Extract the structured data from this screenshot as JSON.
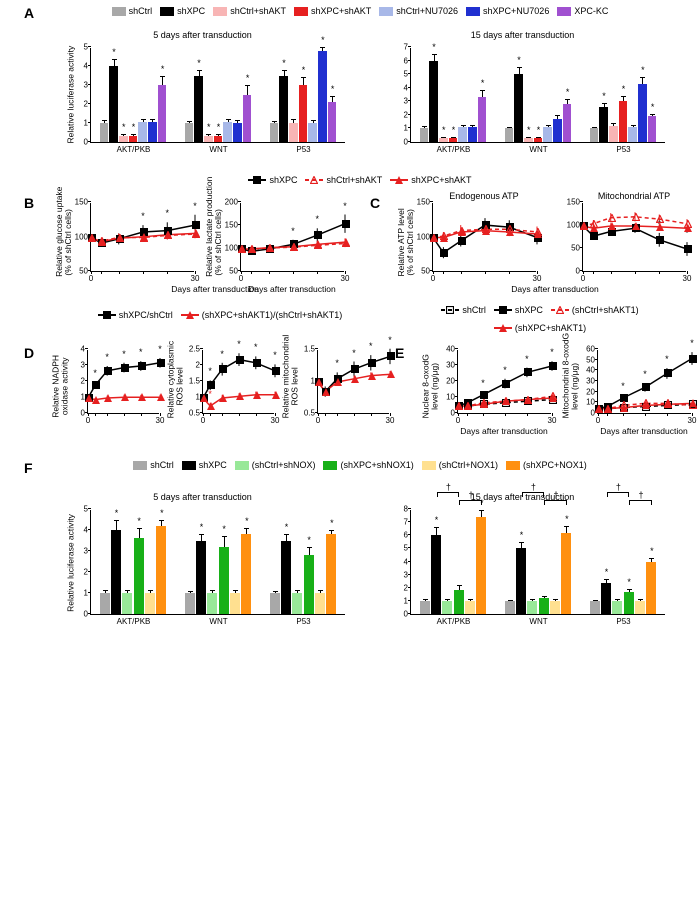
{
  "panelA": {
    "label": "A",
    "legend": [
      {
        "label": "shCtrl",
        "color": "#a8a8a8"
      },
      {
        "label": "shXPC",
        "color": "#000000"
      },
      {
        "label": "shCtrl+shAKT",
        "color": "#f8b5b5"
      },
      {
        "label": "shXPC+shAKT",
        "color": "#e62020"
      },
      {
        "label": "shCtrl+NU7026",
        "color": "#a8b8e8"
      },
      {
        "label": "shXPC+NU7026",
        "color": "#2030d0"
      },
      {
        "label": "XPC-KC",
        "color": "#a050d0"
      }
    ],
    "ylabel": "Relative luciferase activity",
    "ylim": [
      0,
      5
    ],
    "charts": [
      {
        "title": "5 days after transduction",
        "groups": [
          "AKT/PKB",
          "WNT",
          "P53"
        ],
        "data": [
          [
            1.0,
            4.0,
            0.3,
            0.3,
            1.05,
            1.05,
            3.0
          ],
          [
            1.0,
            3.5,
            0.3,
            0.3,
            1.05,
            1.0,
            2.5
          ],
          [
            1.0,
            3.5,
            1.0,
            3.0,
            1.0,
            4.8,
            2.1
          ]
        ],
        "err": [
          [
            0.15,
            0.35,
            0.1,
            0.1,
            0.15,
            0.15,
            0.5
          ],
          [
            0.1,
            0.3,
            0.1,
            0.1,
            0.15,
            0.15,
            0.5
          ],
          [
            0.1,
            0.3,
            0.2,
            0.4,
            0.15,
            0.2,
            0.3
          ]
        ],
        "stars": [
          [
            1,
            2,
            3,
            6
          ],
          [
            1,
            2,
            3,
            6
          ],
          [
            1,
            3,
            5,
            6
          ]
        ]
      },
      {
        "title": "15 days after transduction",
        "groups": [
          "AKT/PKB",
          "WNT",
          "P53"
        ],
        "ylim": [
          0,
          7
        ],
        "data": [
          [
            1.0,
            6.0,
            0.3,
            0.3,
            1.1,
            1.1,
            3.3
          ],
          [
            1.0,
            5.0,
            0.3,
            0.3,
            1.1,
            1.7,
            2.8
          ],
          [
            1.0,
            2.6,
            1.2,
            3.0,
            1.1,
            4.3,
            1.9
          ]
        ],
        "err": [
          [
            0.15,
            0.5,
            0.1,
            0.1,
            0.15,
            0.15,
            0.5
          ],
          [
            0.1,
            0.5,
            0.1,
            0.1,
            0.15,
            0.3,
            0.4
          ],
          [
            0.1,
            0.3,
            0.2,
            0.4,
            0.15,
            0.5,
            0.2
          ]
        ],
        "stars": [
          [
            1,
            2,
            3,
            6
          ],
          [
            1,
            2,
            3,
            6
          ],
          [
            1,
            3,
            5,
            6
          ]
        ]
      }
    ]
  },
  "legendBCDE": [
    {
      "label": "shXPC",
      "color": "#000000",
      "marker": "square-filled"
    },
    {
      "label": "shCtrl+shAKT",
      "color": "#e62020",
      "marker": "triangle-open",
      "dash": true
    },
    {
      "label": "shXPC+shAKT",
      "color": "#e62020",
      "marker": "triangle-filled"
    }
  ],
  "panelB": {
    "label": "B",
    "xlabel": "Days after transduction",
    "xvals": [
      0,
      3,
      8,
      15,
      22,
      30
    ],
    "charts": [
      {
        "ylabel": "Relative glucose uptake\n(% of shCtrl cells)",
        "ylim": [
          50,
          150
        ],
        "ystep": 50,
        "series": [
          {
            "y": [
              100,
              92,
              98,
              108,
              110,
              118
            ],
            "err": [
              5,
              5,
              8,
              10,
              12,
              15
            ],
            "stars": [
              3,
              4,
              5
            ]
          },
          {
            "y": [
              100,
              95,
              100,
              100,
              103,
              105
            ],
            "err": [
              5,
              5,
              6,
              6,
              6,
              6
            ]
          },
          {
            "y": [
              100,
              94,
              99,
              101,
              104,
              106
            ],
            "err": [
              5,
              5,
              6,
              6,
              6,
              6
            ]
          }
        ]
      },
      {
        "ylabel": "Relative lactate production\n(% of shCtrl cells)",
        "ylim": [
          50,
          200
        ],
        "ystep": 50,
        "series": [
          {
            "y": [
              100,
              95,
              100,
              110,
              130,
              155
            ],
            "err": [
              5,
              5,
              8,
              10,
              15,
              20
            ],
            "stars": [
              3,
              4,
              5
            ]
          },
          {
            "y": [
              100,
              100,
              102,
              104,
              108,
              112
            ],
            "err": [
              5,
              5,
              6,
              6,
              8,
              8
            ]
          },
          {
            "y": [
              100,
              100,
              103,
              105,
              110,
              115
            ],
            "err": [
              5,
              5,
              6,
              6,
              8,
              8
            ]
          }
        ]
      }
    ]
  },
  "panelC": {
    "label": "C",
    "xlabel": "Days after transduction",
    "xvals": [
      0,
      3,
      8,
      15,
      22,
      30
    ],
    "charts": [
      {
        "title": "Endogenous ATP",
        "ylabel": "Relative ATP level\n(% of shCtrl cells)",
        "ylim": [
          50,
          150
        ],
        "ystep": 50,
        "series": [
          {
            "y": [
              100,
              78,
              95,
              118,
              115,
              100
            ],
            "err": [
              5,
              8,
              8,
              10,
              10,
              10
            ]
          },
          {
            "y": [
              100,
              102,
              110,
              112,
              112,
              108
            ],
            "err": [
              5,
              6,
              8,
              8,
              8,
              8
            ]
          },
          {
            "y": [
              100,
              100,
              108,
              110,
              108,
              105
            ],
            "err": [
              5,
              6,
              6,
              6,
              6,
              6
            ]
          }
        ]
      },
      {
        "title": "Mitochondrial ATP",
        "ylim": [
          0,
          150
        ],
        "ystep": 50,
        "series": [
          {
            "y": [
              100,
              78,
              88,
              95,
              70,
              50
            ],
            "err": [
              5,
              8,
              8,
              10,
              15,
              15
            ],
            "stars": [
              4,
              5
            ]
          },
          {
            "y": [
              100,
              105,
              118,
              120,
              115,
              105
            ],
            "err": [
              5,
              8,
              10,
              10,
              10,
              10
            ]
          },
          {
            "y": [
              100,
              95,
              100,
              100,
              98,
              95
            ],
            "err": [
              5,
              6,
              6,
              6,
              6,
              6
            ]
          }
        ]
      }
    ]
  },
  "legendD": [
    {
      "label": "shXPC/shCtrl",
      "color": "#000000",
      "marker": "square-filled"
    },
    {
      "label": "(shXPC+shAKT1)/(shCtrl+shAKT1)",
      "color": "#e62020",
      "marker": "triangle-filled"
    }
  ],
  "panelD": {
    "label": "D",
    "xvals": [
      0,
      3,
      8,
      15,
      22,
      30
    ],
    "charts": [
      {
        "ylabel": "Relative NADPH\noxidase activity",
        "ylim": [
          0,
          4
        ],
        "ystep": 1,
        "series": [
          {
            "y": [
              1.0,
              1.8,
              2.7,
              2.9,
              3.0,
              3.2
            ],
            "err": [
              0.1,
              0.2,
              0.3,
              0.3,
              0.3,
              0.3
            ],
            "stars": [
              1,
              2,
              3,
              4,
              5
            ]
          },
          {
            "y": [
              1.0,
              0.9,
              1.0,
              1.05,
              1.05,
              1.05
            ],
            "err": [
              0.1,
              0.1,
              0.15,
              0.15,
              0.15,
              0.15
            ]
          }
        ]
      },
      {
        "ylabel": "Relative cytoplasmic\nROS level",
        "ylim": [
          0.5,
          2.5
        ],
        "ystep": 0.5,
        "series": [
          {
            "y": [
              1.0,
              1.4,
              1.9,
              2.2,
              2.1,
              1.85
            ],
            "err": [
              0.1,
              0.15,
              0.2,
              0.2,
              0.2,
              0.2
            ],
            "stars": [
              1,
              2,
              3,
              4,
              5
            ]
          },
          {
            "y": [
              1.0,
              0.75,
              1.0,
              1.05,
              1.1,
              1.1
            ],
            "err": [
              0.1,
              0.1,
              0.1,
              0.1,
              0.1,
              0.1
            ],
            "stars": [
              1
            ],
            "starcolor": "#e62020"
          }
        ]
      },
      {
        "ylabel": "Relative mitochondrial\nROS level",
        "ylim": [
          0.5,
          1.5
        ],
        "ystep": 0.5,
        "series": [
          {
            "y": [
              1.0,
              0.85,
              1.05,
              1.2,
              1.3,
              1.4
            ],
            "err": [
              0.05,
              0.08,
              0.1,
              0.12,
              0.12,
              0.12
            ],
            "stars": [
              2,
              3,
              4,
              5
            ]
          },
          {
            "y": [
              1.0,
              0.85,
              1.0,
              1.05,
              1.1,
              1.12
            ],
            "err": [
              0.05,
              0.05,
              0.05,
              0.05,
              0.05,
              0.05
            ]
          }
        ]
      }
    ]
  },
  "legendE": [
    {
      "label": "shCtrl",
      "color": "#000000",
      "marker": "square-open",
      "dash": true
    },
    {
      "label": "shXPC",
      "color": "#000000",
      "marker": "square-filled"
    },
    {
      "label": "(shCtrl+shAKT1)",
      "color": "#e62020",
      "marker": "triangle-open",
      "dash": true
    },
    {
      "label": "(shXPC+shAKT1)",
      "color": "#e62020",
      "marker": "triangle-filled"
    }
  ],
  "panelE": {
    "label": "E",
    "xlabel": "Days after transduction",
    "xvals": [
      0,
      3,
      8,
      15,
      22,
      30
    ],
    "charts": [
      {
        "ylabel": "Nuclear 8-oxodG\nlevel (ng/μg)",
        "ylim": [
          0,
          40
        ],
        "ystep": 10,
        "series": [
          {
            "y": [
              5,
              5,
              6,
              7,
              8,
              9
            ],
            "err": [
              1,
              1,
              1,
              1,
              1,
              1
            ]
          },
          {
            "y": [
              5,
              7,
              12,
              19,
              26,
              30
            ],
            "err": [
              1,
              2,
              2,
              3,
              3,
              3
            ],
            "stars": [
              2,
              3,
              4,
              5
            ]
          },
          {
            "y": [
              5,
              5,
              7,
              8,
              9,
              11
            ],
            "err": [
              1,
              1,
              1,
              1,
              1,
              1
            ]
          },
          {
            "y": [
              5,
              5,
              6,
              8,
              9,
              10
            ],
            "err": [
              1,
              1,
              1,
              1,
              1,
              1
            ]
          }
        ]
      },
      {
        "ylabel": "Mitochondrial 8-oxodG\nlevel (ng/μg)",
        "ylim": [
          0,
          60
        ],
        "ystep": 10,
        "series": [
          {
            "y": [
              5,
              5,
              6,
              7,
              8,
              9
            ],
            "err": [
              1,
              1,
              1,
              1,
              1,
              1
            ]
          },
          {
            "y": [
              5,
              7,
              15,
              25,
              38,
              52
            ],
            "err": [
              1,
              2,
              3,
              4,
              5,
              6
            ],
            "stars": [
              2,
              3,
              4,
              5
            ]
          },
          {
            "y": [
              5,
              5,
              8,
              10,
              10,
              8
            ],
            "err": [
              1,
              1,
              1,
              2,
              2,
              1
            ]
          },
          {
            "y": [
              5,
              5,
              6,
              8,
              9,
              10
            ],
            "err": [
              1,
              1,
              1,
              1,
              1,
              1
            ]
          }
        ]
      }
    ]
  },
  "panelF": {
    "label": "F",
    "legend": [
      {
        "label": "shCtrl",
        "color": "#a8a8a8"
      },
      {
        "label": "shXPC",
        "color": "#000000"
      },
      {
        "label": "(shCtrl+shNOX)",
        "color": "#98e898"
      },
      {
        "label": "(shXPC+shNOX1)",
        "color": "#18b018"
      },
      {
        "label": "(shCtrl+NOX1)",
        "color": "#ffe090"
      },
      {
        "label": "(shXPC+NOX1)",
        "color": "#ff9010"
      }
    ],
    "ylabel": "Relative luciferase activity",
    "charts": [
      {
        "title": "5 days after transduction",
        "groups": [
          "AKT/PKB",
          "WNT",
          "P53"
        ],
        "ylim": [
          0,
          5
        ],
        "data": [
          [
            1.0,
            4.0,
            1.0,
            3.6,
            1.0,
            4.2
          ],
          [
            1.0,
            3.5,
            1.0,
            3.2,
            1.0,
            3.8
          ],
          [
            1.0,
            3.5,
            1.0,
            2.8,
            1.0,
            3.8
          ]
        ],
        "err": [
          [
            0.15,
            0.5,
            0.15,
            0.5,
            0.15,
            0.3
          ],
          [
            0.1,
            0.3,
            0.15,
            0.5,
            0.15,
            0.3
          ],
          [
            0.1,
            0.3,
            0.15,
            0.4,
            0.15,
            0.2
          ]
        ],
        "stars": [
          [
            1,
            3,
            5
          ],
          [
            1,
            3,
            5
          ],
          [
            1,
            3,
            5
          ]
        ]
      },
      {
        "title": "15 days after transduction",
        "groups": [
          "AKT/PKB",
          "WNT",
          "P53"
        ],
        "ylim": [
          0,
          8
        ],
        "data": [
          [
            1.0,
            6.0,
            1.0,
            1.8,
            1.0,
            7.4
          ],
          [
            1.0,
            5.0,
            1.0,
            1.2,
            1.0,
            6.2
          ],
          [
            1.0,
            2.4,
            1.0,
            1.7,
            1.0,
            4.0
          ]
        ],
        "err": [
          [
            0.15,
            0.6,
            0.15,
            0.4,
            0.15,
            0.5
          ],
          [
            0.1,
            0.5,
            0.15,
            0.2,
            0.15,
            0.5
          ],
          [
            0.1,
            0.3,
            0.15,
            0.2,
            0.15,
            0.3
          ]
        ],
        "stars": [
          [
            1,
            5
          ],
          [
            1,
            5
          ],
          [
            1,
            3,
            5
          ]
        ],
        "daggers": true
      }
    ]
  }
}
